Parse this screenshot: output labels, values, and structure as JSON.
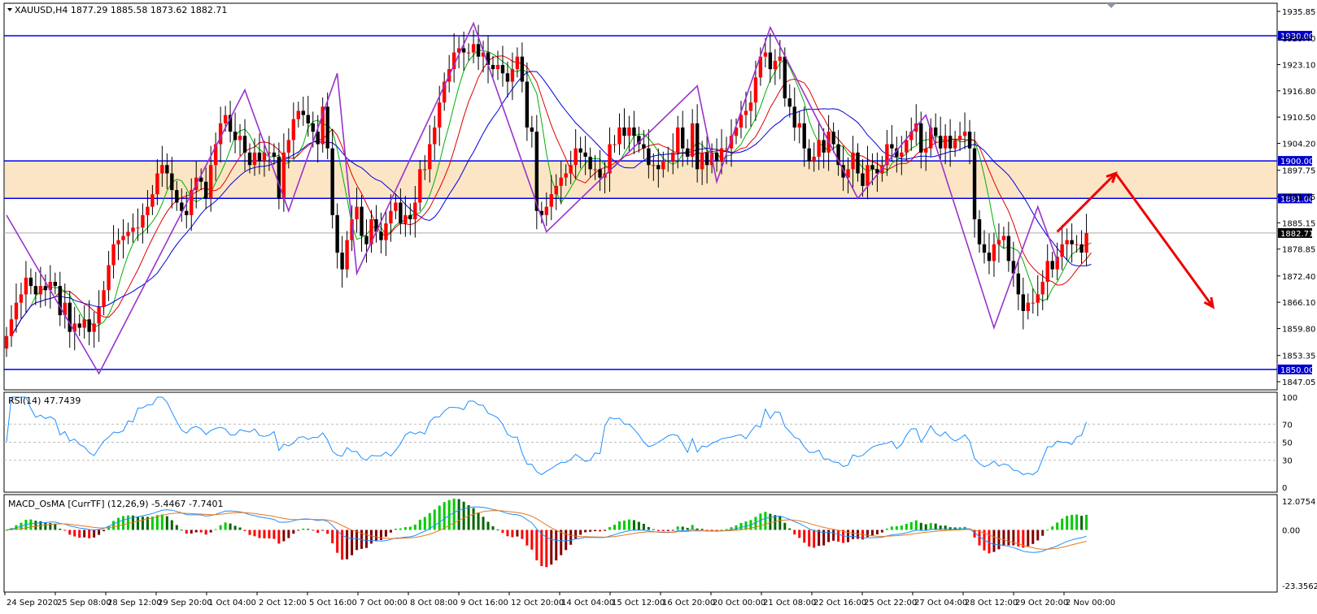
{
  "chart_data": {
    "type": "candlestick",
    "symbol_header": "XAUUSD,H4  1877.29 1885.58 1873.62 1882.71",
    "price_axis": {
      "ylim": [
        1847.05,
        1935.85
      ],
      "ticks": [
        "1935.85",
        "1929.40",
        "1923.10",
        "1916.80",
        "1910.50",
        "1904.20",
        "1897.75",
        "1891.45",
        "1885.15",
        "1878.85",
        "1872.40",
        "1866.10",
        "1859.80",
        "1853.35",
        "1847.05"
      ],
      "current_price_label": "1882.71",
      "current_price": 1882.71
    },
    "horizontal_levels": [
      {
        "label": "1930.00",
        "value": 1930.0
      },
      {
        "label": "1900.00",
        "value": 1900.0
      },
      {
        "label": "1891.00",
        "value": 1891.0
      },
      {
        "label": "1850.00",
        "value": 1850.0
      }
    ],
    "zone": {
      "from": 1891.0,
      "to": 1900.0,
      "color": "#fce5c4"
    },
    "time_labels": [
      "24 Sep 2020",
      "25 Sep 08:00",
      "28 Sep 12:00",
      "29 Sep 20:00",
      "1 Oct 04:00",
      "2 Oct 12:00",
      "5 Oct 16:00",
      "7 Oct 00:00",
      "8 Oct 08:00",
      "9 Oct 16:00",
      "12 Oct 20:00",
      "14 Oct 04:00",
      "15 Oct 12:00",
      "16 Oct 20:00",
      "20 Oct 00:00",
      "21 Oct 08:00",
      "22 Oct 16:00",
      "25 Oct 22:00",
      "27 Oct 04:00",
      "28 Oct 12:00",
      "29 Oct 20:00",
      "2 Nov 00:00"
    ],
    "zigzag_points": [
      {
        "bar": 0,
        "price": 1887
      },
      {
        "bar": 19,
        "price": 1849
      },
      {
        "bar": 49,
        "price": 1917
      },
      {
        "bar": 58,
        "price": 1888
      },
      {
        "bar": 68,
        "price": 1921
      },
      {
        "bar": 72,
        "price": 1873
      },
      {
        "bar": 96,
        "price": 1933
      },
      {
        "bar": 111,
        "price": 1883
      },
      {
        "bar": 142,
        "price": 1918
      },
      {
        "bar": 146,
        "price": 1895
      },
      {
        "bar": 157,
        "price": 1932
      },
      {
        "bar": 175,
        "price": 1891
      },
      {
        "bar": 189,
        "price": 1911
      },
      {
        "bar": 203,
        "price": 1860
      },
      {
        "bar": 212,
        "price": 1889
      },
      {
        "bar": 216,
        "price": 1876
      }
    ],
    "forecast_arrows": [
      {
        "from": {
          "bar": 216,
          "price": 1883
        },
        "to": {
          "bar": 228,
          "price": 1897
        }
      },
      {
        "from": {
          "bar": 228,
          "price": 1897
        },
        "to": {
          "bar": 248,
          "price": 1865
        }
      }
    ],
    "close_series": [
      1858,
      1862,
      1866,
      1868,
      1872,
      1870,
      1868,
      1870,
      1869,
      1871,
      1870,
      1863,
      1866,
      1859,
      1861,
      1860,
      1862,
      1859,
      1861,
      1865,
      1869,
      1875,
      1880,
      1881,
      1882,
      1883,
      1884,
      1884,
      1887,
      1889,
      1892,
      1897,
      1899,
      1897,
      1893,
      1890,
      1888,
      1887,
      1893,
      1896,
      1895,
      1891,
      1899,
      1904,
      1909,
      1911,
      1907,
      1905,
      1906,
      1902,
      1899,
      1902,
      1900,
      1902,
      1902,
      1901,
      1891,
      1902,
      1905,
      1910,
      1912,
      1911,
      1909,
      1907,
      1904,
      1913,
      1903,
      1887,
      1878,
      1874,
      1881,
      1886,
      1889,
      1882,
      1880,
      1886,
      1883,
      1881,
      1885,
      1888,
      1890,
      1885,
      1887,
      1886,
      1890,
      1898,
      1898,
      1904,
      1908,
      1914,
      1919,
      1922,
      1926,
      1927,
      1926,
      1926,
      1928,
      1925,
      1926,
      1923,
      1922,
      1923,
      1921,
      1919,
      1922,
      1925,
      1919,
      1908,
      1907,
      1888,
      1887,
      1889,
      1892,
      1894,
      1896,
      1897,
      1899,
      1903,
      1902,
      1901,
      1898,
      1898,
      1896,
      1897,
      1904,
      1904,
      1908,
      1906,
      1908,
      1906,
      1904,
      1903,
      1899,
      1899,
      1898,
      1900,
      1900,
      1902,
      1908,
      1903,
      1901,
      1909,
      1898,
      1902,
      1899,
      1902,
      1900,
      1903,
      1903,
      1906,
      1908,
      1911,
      1912,
      1914,
      1920,
      1925,
      1926,
      1922,
      1924,
      1925,
      1915,
      1913,
      1908,
      1909,
      1903,
      1900,
      1901,
      1905,
      1902,
      1907,
      1904,
      1899,
      1896,
      1898,
      1902,
      1897,
      1894,
      1899,
      1898,
      1897,
      1899,
      1904,
      1903,
      1901,
      1902,
      1905,
      1907,
      1909,
      1902,
      1903,
      1908,
      1906,
      1903,
      1906,
      1903,
      1905,
      1906,
      1907,
      1903,
      1886,
      1880,
      1878,
      1876,
      1880,
      1881,
      1882,
      1876,
      1873,
      1868,
      1864,
      1866,
      1866,
      1868,
      1871,
      1876,
      1874,
      1877,
      1880,
      1881,
      1880,
      1880,
      1878,
      1882.71
    ],
    "indicators": {
      "ma_fast_color": "#00b000",
      "ma_mid_color": "#e00000",
      "ma_slow_color": "#0000e0",
      "zigzag_color": "#9933cc",
      "arrow_color": "#ee0000"
    },
    "rsi": {
      "label": "RSI(14) 47.7439",
      "ylim": [
        0,
        100
      ],
      "ticks": [
        "100",
        "70",
        "50",
        "30",
        "0"
      ],
      "levels": [
        70,
        50,
        30
      ],
      "color": "#1e90ff"
    },
    "macd": {
      "label": "MACD_OsMA [CurrTF] (12,26,9) -5.4467 -7.7401",
      "ticks": [
        "12.0754",
        "0.00",
        "-23.3562"
      ],
      "ylim": [
        -23.3562,
        12.0754
      ],
      "line_colors": {
        "macd": "#1e90ff",
        "signal": "#e87722"
      },
      "hist_colors": {
        "up_strong": "#00cc00",
        "up_weak": "#006600",
        "down_strong": "#ff0000",
        "down_weak": "#800000"
      }
    }
  }
}
